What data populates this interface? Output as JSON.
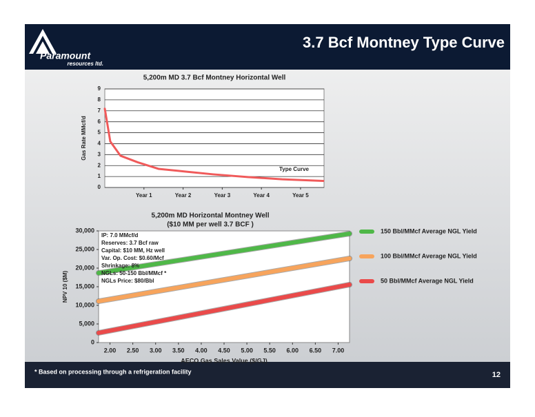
{
  "header": {
    "title": "3.7 Bcf Montney Type Curve",
    "logo_name": "Paramount",
    "logo_sub": "resources ltd."
  },
  "footer": {
    "note": "* Based on processing through a refrigeration facility",
    "page": "12"
  },
  "chart_data": [
    {
      "type": "line",
      "title": "5,200m MD 3.7 Bcf Montney Horizontal Well",
      "y_label": "Gas Rate MMcf/d",
      "xlim": [
        0,
        5.6
      ],
      "xticks": [
        {
          "value": 1,
          "label": "Year 1"
        },
        {
          "value": 2,
          "label": "Year 2"
        },
        {
          "value": 3,
          "label": "Year 3"
        },
        {
          "value": 4,
          "label": "Year 4"
        },
        {
          "value": 5,
          "label": "Year 5"
        }
      ],
      "ylim": [
        0,
        9
      ],
      "yticks": [
        0,
        1,
        2,
        3,
        4,
        5,
        6,
        7,
        8,
        9
      ],
      "grid": true,
      "annotation": "Type Curve",
      "x": [
        0,
        0.14,
        0.4,
        0.84,
        1.37,
        2.07,
        2.77,
        3.65,
        4.53,
        5.58
      ],
      "series": [
        {
          "color": "#f05a5a",
          "values": [
            7.2,
            4.2,
            2.9,
            2.3,
            1.7,
            1.45,
            1.2,
            0.95,
            0.75,
            0.6
          ]
        }
      ]
    },
    {
      "type": "line",
      "title": [
        "5,200m MD Horizontal Montney Well",
        "($10 MM per well 3.7 BCF )"
      ],
      "x_label": "AECO Gas Sales Value ($/GJ)",
      "y_label": "NPV 10 ($M)",
      "xlim": [
        1.75,
        7.25
      ],
      "xticks": [
        {
          "value": 2,
          "label": "2.00"
        },
        {
          "value": 2.5,
          "label": "2.50"
        },
        {
          "value": 3,
          "label": "3.00"
        },
        {
          "value": 3.5,
          "label": "3.50"
        },
        {
          "value": 4,
          "label": "4.00"
        },
        {
          "value": 4.5,
          "label": "4.50"
        },
        {
          "value": 5,
          "label": "5.00"
        },
        {
          "value": 5.5,
          "label": "5.50"
        },
        {
          "value": 6,
          "label": "6.00"
        },
        {
          "value": 6.5,
          "label": "6.50"
        },
        {
          "value": 7,
          "label": "7.00"
        }
      ],
      "ylim": [
        0,
        30000
      ],
      "yticks": [
        0,
        {
          "value": 5000,
          "label": "5,000"
        },
        {
          "value": 10000,
          "label": "10,000"
        },
        {
          "value": 15000,
          "label": "15,000"
        },
        {
          "value": 20000,
          "label": "20,000"
        },
        {
          "value": 25000,
          "label": "25,000"
        },
        {
          "value": 30000,
          "label": "30,000"
        }
      ],
      "grid": false,
      "annotation": [
        "IP: 7.0 MMcf/d",
        "Reserves: 3.7 Bcf raw",
        "Capital: $10 MM, Hz well",
        "Var. Op. Cost: $0.60/Mcf",
        "Shrinkage: 8%",
        "NGLs: 50-150 Bbl/MMcf *",
        "NGLs Price: $80/Bbl"
      ],
      "x": [
        1.75,
        7.25
      ],
      "series": [
        {
          "name": "150 Bbl/MMcf Average NGL Yield",
          "color": "#4fb848",
          "values": [
            18700,
            29260
          ]
        },
        {
          "name": "100 Bbl/MMcf Average NGL Yield",
          "color": "#f7a45c",
          "values": [
            11100,
            22600
          ]
        },
        {
          "name": "50 Bbl/MMcf Average NGL Yield",
          "color": "#ea4a4a",
          "values": [
            2600,
            15560
          ]
        }
      ]
    }
  ]
}
